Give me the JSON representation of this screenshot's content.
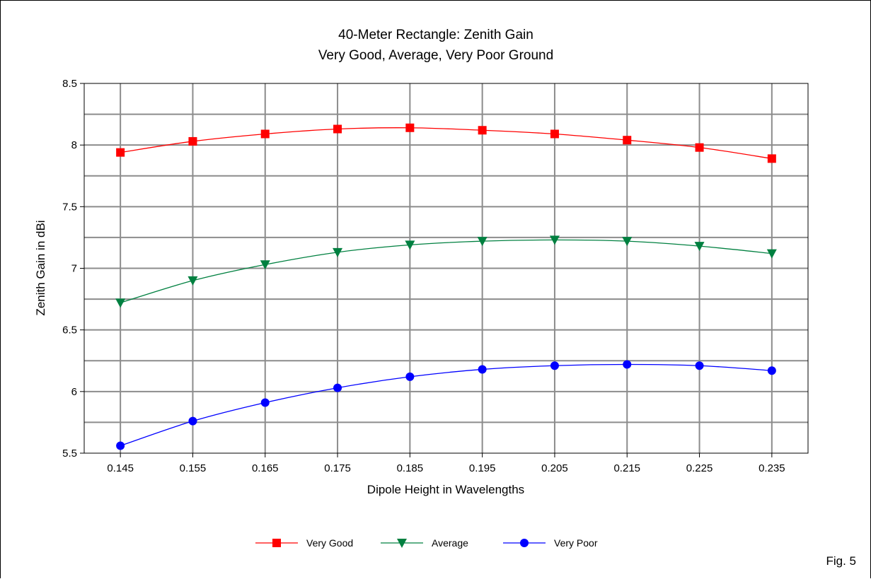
{
  "figure_label": "Fig. 5",
  "chart_data": {
    "type": "line",
    "title": "40-Meter Rectangle: Zenith Gain",
    "subtitle": "Very Good, Average, Very Poor Ground",
    "xlabel": "Dipole Height in Wavelengths",
    "ylabel": "Zenith Gain in dBi",
    "categories": [
      "0.145",
      "0.155",
      "0.165",
      "0.175",
      "0.185",
      "0.195",
      "0.205",
      "0.215",
      "0.225",
      "0.235"
    ],
    "y_ticks": [
      "5.5",
      "6",
      "6.5",
      "7",
      "7.5",
      "8",
      "8.5"
    ],
    "ylim": [
      5.5,
      8.5
    ],
    "y_minor_step": 0.25,
    "grid": true,
    "legend_position": "bottom",
    "series": [
      {
        "name": "Very Good",
        "color": "#ff0000",
        "marker": "square",
        "values": [
          7.94,
          8.03,
          8.09,
          8.13,
          8.14,
          8.12,
          8.09,
          8.04,
          7.98,
          7.89
        ]
      },
      {
        "name": "Average",
        "color": "#008040",
        "marker": "triangle-down",
        "values": [
          6.72,
          6.9,
          7.03,
          7.13,
          7.19,
          7.22,
          7.23,
          7.22,
          7.18,
          7.12
        ]
      },
      {
        "name": "Very Poor",
        "color": "#0000ff",
        "marker": "circle",
        "values": [
          5.56,
          5.76,
          5.91,
          6.03,
          6.12,
          6.18,
          6.21,
          6.22,
          6.21,
          6.17
        ]
      }
    ]
  }
}
